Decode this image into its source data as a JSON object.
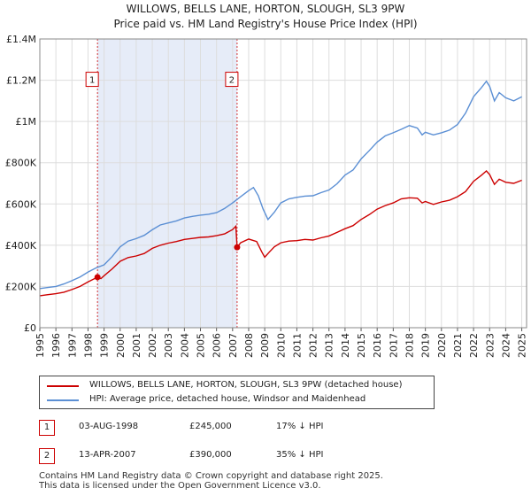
{
  "title_line1": "WILLOWS, BELLS LANE, HORTON, SLOUGH, SL3 9PW",
  "title_line2": "Price paid vs. HM Land Registry's House Price Index (HPI)",
  "colors": {
    "property": "#cc0000",
    "hpi": "#5b8fd4",
    "shade": "#e6ecf8",
    "grid": "#dddddd"
  },
  "chart_data": {
    "type": "line",
    "title": "WILLOWS, BELLS LANE, HORTON, SLOUGH, SL3 9PW — Price paid vs. HM Land Registry's House Price Index (HPI)",
    "xlabel": "",
    "ylabel": "",
    "xlim": [
      1995,
      2025.3
    ],
    "ylim": [
      0,
      1400000
    ],
    "x_ticks": [
      "1995",
      "1996",
      "1997",
      "1998",
      "1999",
      "2000",
      "2001",
      "2002",
      "2003",
      "2004",
      "2005",
      "2006",
      "2007",
      "2008",
      "2009",
      "2010",
      "2011",
      "2012",
      "2013",
      "2014",
      "2015",
      "2016",
      "2017",
      "2018",
      "2019",
      "2020",
      "2021",
      "2022",
      "2023",
      "2024",
      "2025"
    ],
    "y_ticks": [
      {
        "value": 0,
        "label": "£0"
      },
      {
        "value": 200000,
        "label": "£200K"
      },
      {
        "value": 400000,
        "label": "£400K"
      },
      {
        "value": 600000,
        "label": "£600K"
      },
      {
        "value": 800000,
        "label": "£800K"
      },
      {
        "value": 1000000,
        "label": "£1M"
      },
      {
        "value": 1200000,
        "label": "£1.2M"
      },
      {
        "value": 1400000,
        "label": "£1.4M"
      }
    ],
    "grid": true,
    "shaded_region": [
      1998.59,
      2007.28
    ],
    "series": [
      {
        "name": "WILLOWS, BELLS LANE, HORTON, SLOUGH, SL3 9PW (detached house)",
        "color": "#cc0000",
        "x": [
          1995.0,
          1995.5,
          1996.0,
          1996.5,
          1997.0,
          1997.5,
          1998.0,
          1998.59,
          1998.8,
          1999.0,
          1999.5,
          2000.0,
          2000.5,
          2001.0,
          2001.5,
          2002.0,
          2002.5,
          2003.0,
          2003.5,
          2004.0,
          2004.5,
          2005.0,
          2005.5,
          2006.0,
          2006.5,
          2007.0,
          2007.2,
          2007.28,
          2007.5,
          2008.0,
          2008.5,
          2008.8,
          2009.0,
          2009.3,
          2009.6,
          2010.0,
          2010.5,
          2011.0,
          2011.5,
          2012.0,
          2012.5,
          2013.0,
          2013.5,
          2014.0,
          2014.5,
          2015.0,
          2015.5,
          2016.0,
          2016.5,
          2017.0,
          2017.5,
          2018.0,
          2018.5,
          2018.8,
          2019.0,
          2019.5,
          2020.0,
          2020.5,
          2021.0,
          2021.5,
          2022.0,
          2022.5,
          2022.8,
          2023.0,
          2023.3,
          2023.6,
          2024.0,
          2024.5,
          2025.0
        ],
        "values": [
          155000,
          160000,
          165000,
          172000,
          185000,
          200000,
          222000,
          245000,
          238000,
          252000,
          285000,
          322000,
          340000,
          348000,
          360000,
          385000,
          400000,
          410000,
          418000,
          428000,
          433000,
          438000,
          440000,
          446000,
          455000,
          476000,
          492000,
          390000,
          412000,
          430000,
          418000,
          370000,
          342000,
          368000,
          392000,
          412000,
          420000,
          422000,
          428000,
          425000,
          436000,
          445000,
          462000,
          480000,
          495000,
          525000,
          548000,
          575000,
          592000,
          605000,
          625000,
          630000,
          628000,
          605000,
          612000,
          598000,
          610000,
          618000,
          635000,
          660000,
          710000,
          740000,
          760000,
          742000,
          695000,
          720000,
          705000,
          700000,
          715000
        ]
      },
      {
        "name": "HPI: Average price, detached house, Windsor and Maidenhead",
        "color": "#5b8fd4",
        "x": [
          1995.0,
          1995.5,
          1996.0,
          1996.5,
          1997.0,
          1997.5,
          1998.0,
          1998.5,
          1999.0,
          1999.5,
          2000.0,
          2000.5,
          2001.0,
          2001.5,
          2002.0,
          2002.5,
          2003.0,
          2003.5,
          2004.0,
          2004.5,
          2005.0,
          2005.5,
          2006.0,
          2006.5,
          2007.0,
          2007.5,
          2008.0,
          2008.3,
          2008.6,
          2008.9,
          2009.2,
          2009.6,
          2010.0,
          2010.5,
          2011.0,
          2011.5,
          2012.0,
          2012.5,
          2013.0,
          2013.5,
          2014.0,
          2014.5,
          2015.0,
          2015.5,
          2016.0,
          2016.5,
          2017.0,
          2017.5,
          2018.0,
          2018.5,
          2018.8,
          2019.0,
          2019.5,
          2020.0,
          2020.5,
          2021.0,
          2021.5,
          2022.0,
          2022.5,
          2022.8,
          2023.0,
          2023.3,
          2023.6,
          2024.0,
          2024.5,
          2025.0
        ],
        "values": [
          190000,
          195000,
          200000,
          212000,
          228000,
          246000,
          270000,
          290000,
          305000,
          345000,
          392000,
          420000,
          432000,
          448000,
          475000,
          498000,
          508000,
          518000,
          532000,
          540000,
          546000,
          550000,
          558000,
          578000,
          605000,
          635000,
          665000,
          680000,
          640000,
          575000,
          525000,
          560000,
          605000,
          625000,
          632000,
          638000,
          640000,
          655000,
          668000,
          698000,
          740000,
          765000,
          818000,
          858000,
          900000,
          930000,
          945000,
          962000,
          980000,
          968000,
          935000,
          948000,
          935000,
          945000,
          958000,
          985000,
          1040000,
          1120000,
          1165000,
          1195000,
          1170000,
          1100000,
          1140000,
          1115000,
          1100000,
          1120000
        ]
      }
    ],
    "sales": [
      {
        "label": "1",
        "date": "03-AUG-1998",
        "year": 1998.59,
        "price": 245000,
        "price_text": "£245,000",
        "hpi_text": "17% ↓ HPI"
      },
      {
        "label": "2",
        "date": "13-APR-2007",
        "year": 2007.28,
        "price": 390000,
        "price_text": "£390,000",
        "hpi_text": "35% ↓ HPI"
      }
    ]
  },
  "legend": {
    "property": "WILLOWS, BELLS LANE, HORTON, SLOUGH, SL3 9PW (detached house)",
    "hpi": "HPI: Average price, detached house, Windsor and Maidenhead"
  },
  "footer": {
    "line1": "Contains HM Land Registry data © Crown copyright and database right 2025.",
    "line2": "This data is licensed under the Open Government Licence v3.0."
  }
}
